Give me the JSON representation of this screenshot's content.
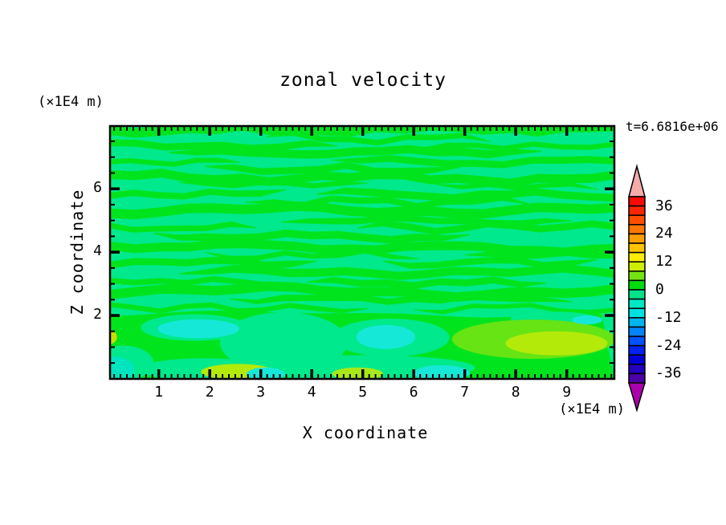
{
  "chart_data": {
    "type": "filled_contour",
    "title": "zonal velocity",
    "time_annotation": "t=6.6816e+06",
    "xlabel": "X coordinate",
    "xunit": "(×1E4 m)",
    "x_range": [
      0,
      10
    ],
    "x_major_ticks": [
      1,
      2,
      3,
      4,
      5,
      6,
      7,
      8,
      9
    ],
    "x_minor_step": 0.125,
    "ylabel": "Z coordinate",
    "yunit": "(×1E4 m)",
    "y_range": [
      0,
      8
    ],
    "y_major_ticks": [
      2,
      4,
      6
    ],
    "y_minor_step": 0.5,
    "grid": false,
    "legend_position": "right vertical colorbar with triangular over/undershoot arrows",
    "contour_levels": {
      "min": -40,
      "max": 40,
      "step": 4,
      "labeled": [
        36,
        24,
        12,
        0,
        -12,
        -24,
        -36
      ]
    },
    "field": {
      "colors": {
        "background_spring_green": "#00e98c",
        "stripe_green": "#00e41e",
        "cyan": "#16e8d8",
        "turquoise": "#00e5c0",
        "chartreuse": "#66e414",
        "yellow_green": "#b4ea0a",
        "bright_yellow_green": "#d2f20a"
      },
      "description": "near-zero zonal velocity: wavy horizontal green stripes (0..4) over spring-green (-4..0); lower boundary layer z<2 mostly green with cyan (-8..-4) pockets and yellow-green (4..12) patches",
      "lower_region_top_z": 2.05,
      "stripes": [
        [
          7.85,
          0,
          10,
          0.3
        ],
        [
          7.62,
          3.1,
          7.5,
          0.18
        ],
        [
          7.38,
          0,
          4.5,
          0.22
        ],
        [
          7.36,
          6.1,
          10,
          0.16
        ],
        [
          7.12,
          1.2,
          8.5,
          0.26
        ],
        [
          6.88,
          0,
          2.6,
          0.16
        ],
        [
          6.86,
          4.4,
          10,
          0.22
        ],
        [
          6.62,
          1.9,
          6.9,
          0.22
        ],
        [
          6.38,
          0,
          10,
          0.28
        ],
        [
          6.12,
          1.4,
          5.1,
          0.16
        ],
        [
          6.1,
          6.4,
          9.6,
          0.14
        ],
        [
          5.86,
          0,
          3.5,
          0.2
        ],
        [
          5.84,
          4.1,
          10,
          0.24
        ],
        [
          5.6,
          2.7,
          8.3,
          0.2
        ],
        [
          5.32,
          0,
          10,
          0.3
        ],
        [
          5.02,
          3.4,
          9.1,
          0.2
        ],
        [
          4.78,
          0,
          2.9,
          0.18
        ],
        [
          4.76,
          4.9,
          10,
          0.22
        ],
        [
          4.52,
          0.9,
          7.1,
          0.24
        ],
        [
          4.22,
          0,
          10,
          0.28
        ],
        [
          3.92,
          1.9,
          6.1,
          0.16
        ],
        [
          3.9,
          7.0,
          10,
          0.18
        ],
        [
          3.66,
          0,
          4.1,
          0.22
        ],
        [
          3.64,
          5.4,
          9.6,
          0.2
        ],
        [
          3.36,
          1.4,
          10,
          0.26
        ],
        [
          3.06,
          0,
          3.1,
          0.18
        ],
        [
          3.04,
          3.9,
          8.6,
          0.22
        ],
        [
          2.8,
          0,
          10,
          0.3
        ],
        [
          2.52,
          2.4,
          9.1,
          0.2
        ],
        [
          2.26,
          0,
          5.1,
          0.16
        ],
        [
          2.24,
          6.0,
          10,
          0.14
        ]
      ],
      "patches": [
        {
          "x": 3.45,
          "z": 1.15,
          "rx": 1.25,
          "rz": 0.95,
          "c": "#00e98c"
        },
        {
          "x": 1.7,
          "z": 1.62,
          "rx": 1.05,
          "rz": 0.42,
          "c": "#00e98c"
        },
        {
          "x": 5.55,
          "z": 1.3,
          "rx": 1.15,
          "rz": 0.6,
          "c": "#00e98c"
        },
        {
          "x": 5.0,
          "z": 0.35,
          "rx": 2.2,
          "rz": 0.4,
          "c": "#00e98c"
        },
        {
          "x": 1.9,
          "z": 0.3,
          "rx": 1.3,
          "rz": 0.35,
          "c": "#00e98c"
        },
        {
          "x": 8.75,
          "z": 1.9,
          "rx": 0.85,
          "rz": 0.22,
          "c": "#00e98c"
        },
        {
          "x": 0.3,
          "z": 0.5,
          "rx": 0.6,
          "rz": 0.55,
          "c": "#00e98c"
        },
        {
          "x": 0.12,
          "z": 0.3,
          "rx": 0.4,
          "rz": 0.4,
          "c": "#00e5c0"
        },
        {
          "x": 8.35,
          "z": 1.25,
          "rx": 1.6,
          "rz": 0.62,
          "c": "#66e414"
        },
        {
          "x": 8.8,
          "z": 1.12,
          "rx": 1.0,
          "rz": 0.38,
          "c": "#b4ea0a"
        },
        {
          "x": 2.55,
          "z": 0.22,
          "rx": 0.72,
          "rz": 0.25,
          "c": "#b4ea0a"
        },
        {
          "x": 4.9,
          "z": 0.16,
          "rx": 0.5,
          "rz": 0.2,
          "c": "#a8e81a"
        },
        {
          "x": 0.04,
          "z": 1.32,
          "rx": 0.14,
          "rz": 0.22,
          "c": "#c8e000"
        },
        {
          "x": 1.78,
          "z": 1.58,
          "rx": 0.8,
          "rz": 0.3,
          "c": "#16e8d8"
        },
        {
          "x": 5.45,
          "z": 1.32,
          "rx": 0.58,
          "rz": 0.38,
          "c": "#16e8d8"
        },
        {
          "x": 3.1,
          "z": 0.14,
          "rx": 0.38,
          "rz": 0.22,
          "c": "#16e8d8"
        },
        {
          "x": 6.55,
          "z": 0.18,
          "rx": 0.55,
          "rz": 0.25,
          "c": "#16e8d8"
        },
        {
          "x": 9.4,
          "z": 1.86,
          "rx": 0.3,
          "rz": 0.14,
          "c": "#16e8d8"
        }
      ]
    }
  },
  "figure": {
    "x_tick_labels": [
      "1",
      "2",
      "3",
      "4",
      "5",
      "6",
      "7",
      "8",
      "9"
    ],
    "y_tick_labels": [
      {
        "v": 6,
        "label": "6"
      },
      {
        "v": 4,
        "label": "4"
      },
      {
        "v": 2,
        "label": "2"
      }
    ],
    "colorbar": {
      "tick_labels": [
        "36",
        "24",
        "12",
        "0",
        "-12",
        "-24",
        "-36"
      ],
      "box_colors_top_to_bottom": [
        "#fa0a00",
        "#fb2600",
        "#ff4e00",
        "#ff7600",
        "#ff9e00",
        "#ffc400",
        "#fbee00",
        "#cdee00",
        "#74e410",
        "#00dc0e",
        "#00e287",
        "#00e7c3",
        "#00e2e2",
        "#00b5ef",
        "#0084fb",
        "#0053ff",
        "#0023f2",
        "#0000d8",
        "#2400bf",
        "#4d00a6"
      ],
      "arrow_high_color": "#f6abab",
      "arrow_low_color": "#ab00ab"
    }
  }
}
